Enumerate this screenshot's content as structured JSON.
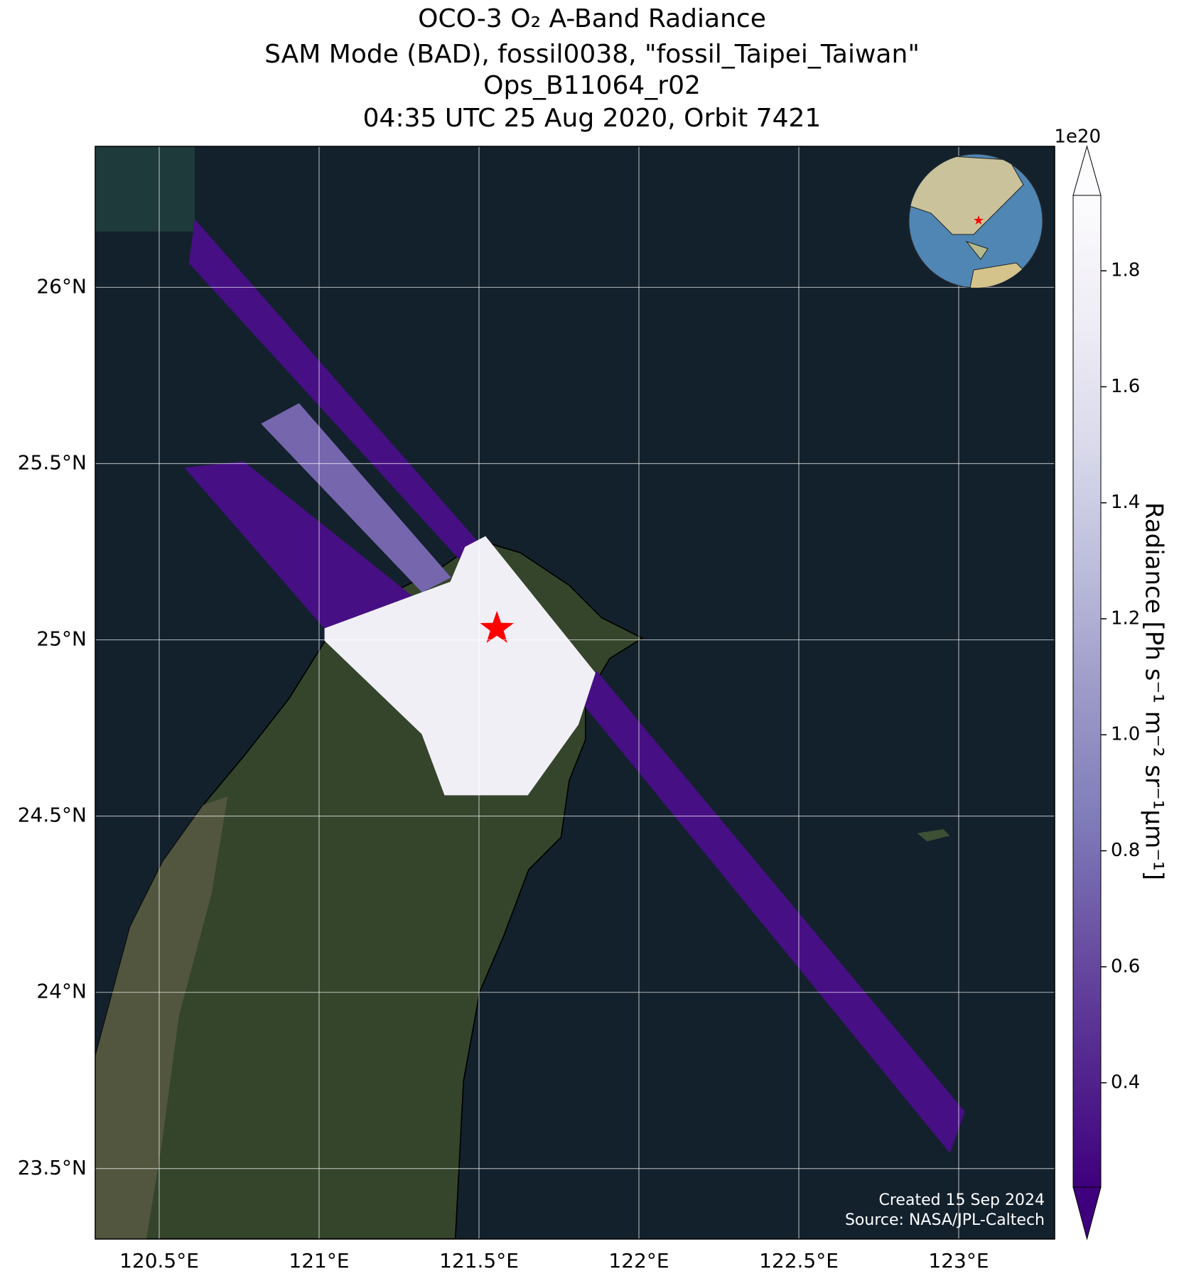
{
  "chart_data": {
    "type": "map",
    "title_lines": [
      "OCO-3 O₂ A-Band Radiance",
      "SAM Mode (BAD), fossil0038, \"fossil_Taipei_Taiwan\"",
      "Ops_B11064_r02",
      "04:35 UTC 25 Aug 2020, Orbit 7421"
    ],
    "xlim": [
      120.3,
      123.3
    ],
    "ylim": [
      23.3,
      26.4
    ],
    "xticks": [
      {
        "value": 120.5,
        "label": "120.5°E"
      },
      {
        "value": 121,
        "label": "121°E"
      },
      {
        "value": 121.5,
        "label": "121.5°E"
      },
      {
        "value": 122,
        "label": "122°E"
      },
      {
        "value": 122.5,
        "label": "122.5°E"
      },
      {
        "value": 123,
        "label": "123°E"
      }
    ],
    "yticks": [
      {
        "value": 23.5,
        "label": "23.5°N"
      },
      {
        "value": 24,
        "label": "24°N"
      },
      {
        "value": 24.5,
        "label": "24.5°N"
      },
      {
        "value": 25,
        "label": "25°N"
      },
      {
        "value": 25.5,
        "label": "25.5°N"
      },
      {
        "value": 26,
        "label": "26°N"
      }
    ],
    "grid": true,
    "colorbar": {
      "label": "Radiance [Ph s⁻¹ m⁻² sr⁻¹μm⁻¹]",
      "exponent_label": "1e20",
      "lim": [
        0.22,
        1.93
      ],
      "ticks": [
        0.4,
        0.6,
        0.8,
        {
          "value": 1,
          "label": "1.0"
        },
        1.2,
        1.4,
        1.6,
        1.8
      ],
      "colormap": [
        "#3f007d",
        "#54278f",
        "#6a51a3",
        "#807dba",
        "#9e9ac8",
        "#bcbddc",
        "#dadaeb",
        "#efedf5",
        "#fcfbfd"
      ]
    },
    "swaths": [
      {
        "radiance": 0.3,
        "lon": [
          120.594,
          120.612,
          121.495,
          121.444
        ],
        "lat": [
          26.069,
          26.191,
          25.279,
          25.224
        ]
      },
      {
        "radiance": 0.3,
        "lon": [
          121.868,
          123.018,
          122.972,
          121.81
        ],
        "lat": [
          24.91,
          23.661,
          23.546,
          24.836
        ]
      },
      {
        "radiance": 0.3,
        "lon": [
          120.581,
          120.764,
          121.322,
          121.018
        ],
        "lat": [
          25.488,
          25.505,
          25.101,
          25.032
        ]
      },
      {
        "radiance": 0.75,
        "lon": [
          120.82,
          120.937,
          121.411,
          121.322
        ],
        "lat": [
          25.613,
          25.67,
          25.177,
          25.136
        ]
      },
      {
        "radiance": 1.75,
        "lon": [
          121.018,
          121.411,
          121.457,
          121.52,
          121.863,
          121.81,
          121.652,
          121.393,
          121.322,
          121.018
        ],
        "lat": [
          25.032,
          25.164,
          25.263,
          25.293,
          24.906,
          24.76,
          24.56,
          24.56,
          24.733,
          24.998
        ]
      }
    ],
    "site": {
      "lon": 121.556,
      "lat": 25.032,
      "color": "#ff0000"
    },
    "footer_lines": [
      "Created 15 Sep 2024",
      "Source: NASA/JPL-Caltech"
    ]
  }
}
